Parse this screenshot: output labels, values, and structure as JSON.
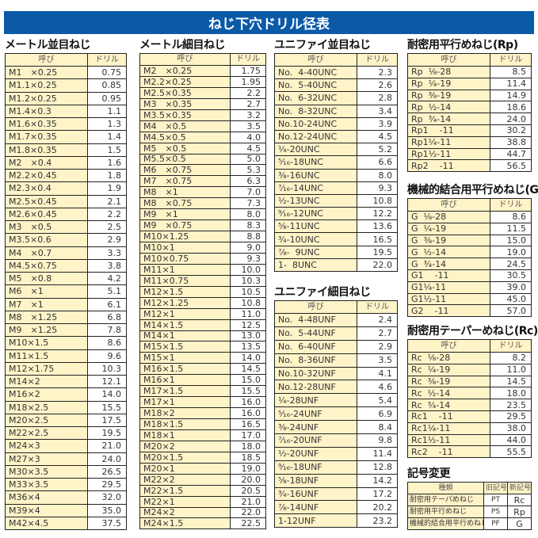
{
  "title": "ねじ下穴ドリル径表",
  "header": {
    "name": "呼び",
    "drill": "ドリル"
  },
  "sections": [
    {
      "id": "metric-coarse",
      "title": "メートル並目ねじ",
      "rows": [
        [
          "M1　×0.25",
          "0.75"
        ],
        [
          "M1.1×0.25",
          "0.85"
        ],
        [
          "M1.2×0.25",
          "0.95"
        ],
        [
          "M1.4×0.3",
          "1.1"
        ],
        [
          "M1.6×0.35",
          "1.3"
        ],
        [
          "M1.7×0.35",
          "1.4"
        ],
        [
          "M1.8×0.35",
          "1.5"
        ],
        [
          "M2　×0.4",
          "1.6"
        ],
        [
          "M2.2×0.45",
          "1.8"
        ],
        [
          "M2.3×0.4",
          "1.9"
        ],
        [
          "M2.5×0.45",
          "2.1"
        ],
        [
          "M2.6×0.45",
          "2.2"
        ],
        [
          "M3　×0.5",
          "2.5"
        ],
        [
          "M3.5×0.6",
          "2.9"
        ],
        [
          "M4　×0.7",
          "3.3"
        ],
        [
          "M4.5×0.75",
          "3.8"
        ],
        [
          "M5　×0.8",
          "4.2"
        ],
        [
          "M6　×1",
          "5.1"
        ],
        [
          "M7　×1",
          "6.1"
        ],
        [
          "M8　×1.25",
          "6.8"
        ],
        [
          "M9　×1.25",
          "7.8"
        ],
        [
          "M10×1.5",
          "8.6"
        ],
        [
          "M11×1.5",
          "9.6"
        ],
        [
          "M12×1.75",
          "10.3"
        ],
        [
          "M14×2",
          "12.1"
        ],
        [
          "M16×2",
          "14.0"
        ],
        [
          "M18×2.5",
          "15.5"
        ],
        [
          "M20×2.5",
          "17.5"
        ],
        [
          "M22×2.5",
          "19.5"
        ],
        [
          "M24×3",
          "21.0"
        ],
        [
          "M27×3",
          "24.0"
        ],
        [
          "M30×3.5",
          "26.5"
        ],
        [
          "M33×3.5",
          "29.5"
        ],
        [
          "M36×4",
          "32.0"
        ],
        [
          "M39×4",
          "35.0"
        ],
        [
          "M42×4.5",
          "37.5"
        ]
      ]
    },
    {
      "id": "metric-fine",
      "title": "メートル細目ねじ",
      "rows": [
        [
          "M2　×0.25",
          "1.75"
        ],
        [
          "M2.2×0.25",
          "1.95"
        ],
        [
          "M2.5×0.35",
          "2.2"
        ],
        [
          "M3　×0.35",
          "2.7"
        ],
        [
          "M3.5×0.35",
          "3.2"
        ],
        [
          "M4　×0.5",
          "3.5"
        ],
        [
          "M4.5×0.5",
          "4.0"
        ],
        [
          "M5　×0.5",
          "4.5"
        ],
        [
          "M5.5×0.5",
          "5.0"
        ],
        [
          "M6　×0.75",
          "5.3"
        ],
        [
          "M7　×0.75",
          "6.3"
        ],
        [
          "M8　×1",
          "7.0"
        ],
        [
          "M8　×0.75",
          "7.3"
        ],
        [
          "M9　×1",
          "8.0"
        ],
        [
          "M9　×0.75",
          "8.3"
        ],
        [
          "M10×1.25",
          "8.8"
        ],
        [
          "M10×1",
          "9.0"
        ],
        [
          "M10×0.75",
          "9.3"
        ],
        [
          "M11×1",
          "10.0"
        ],
        [
          "M11×0.75",
          "10.3"
        ],
        [
          "M12×1.5",
          "10.5"
        ],
        [
          "M12×1.25",
          "10.8"
        ],
        [
          "M12×1",
          "11.0"
        ],
        [
          "M14×1.5",
          "12.5"
        ],
        [
          "M14×1",
          "13.0"
        ],
        [
          "M15×1.5",
          "13.5"
        ],
        [
          "M15×1",
          "14.0"
        ],
        [
          "M16×1.5",
          "14.5"
        ],
        [
          "M16×1",
          "15.0"
        ],
        [
          "M17×1.5",
          "15.5"
        ],
        [
          "M17×1",
          "16.0"
        ],
        [
          "M18×2",
          "16.0"
        ],
        [
          "M18×1.5",
          "16.5"
        ],
        [
          "M18×1",
          "17.0"
        ],
        [
          "M20×2",
          "18.0"
        ],
        [
          "M20×1.5",
          "18.5"
        ],
        [
          "M20×1",
          "19.0"
        ],
        [
          "M22×2",
          "20.0"
        ],
        [
          "M22×1.5",
          "20.5"
        ],
        [
          "M22×1",
          "21.0"
        ],
        [
          "M24×2",
          "22.0"
        ],
        [
          "M24×1.5",
          "22.5"
        ]
      ]
    },
    {
      "id": "unc",
      "title": "ユニファイ並目ねじ",
      "rows": [
        [
          "No.  4-40UNC",
          "2.3"
        ],
        [
          "No.  5-40UNC",
          "2.6"
        ],
        [
          "No.  6-32UNC",
          "2.8"
        ],
        [
          "No.  8-32UNC",
          "3.4"
        ],
        [
          "No.10-24UNC",
          "3.9"
        ],
        [
          "No.12-24UNC",
          "4.5"
        ],
        [
          "¹⁄₄-20UNC",
          "5.2"
        ],
        [
          "⁵⁄₁₆-18UNC",
          "6.6"
        ],
        [
          "³⁄₈-16UNC",
          "8.0"
        ],
        [
          "⁷⁄₁₆-14UNC",
          "9.3"
        ],
        [
          "¹⁄₂-13UNC",
          "10.8"
        ],
        [
          "⁹⁄₁₆-12UNC",
          "12.2"
        ],
        [
          "⁵⁄₈-11UNC",
          "13.6"
        ],
        [
          "³⁄₄-10UNC",
          "16.5"
        ],
        [
          "⁷⁄₈-  9UNC",
          "19.5"
        ],
        [
          "1-  8UNC",
          "22.0"
        ]
      ]
    },
    {
      "id": "unf",
      "title": "ユニファイ細目ねじ",
      "rows": [
        [
          "No.  4-48UNF",
          "2.4"
        ],
        [
          "No.  5-44UNF",
          "2.7"
        ],
        [
          "No.  6-40UNF",
          "2.9"
        ],
        [
          "No.  8-36UNF",
          "3.5"
        ],
        [
          "No.10-32UNF",
          "4.1"
        ],
        [
          "No.12-28UNF",
          "4.6"
        ],
        [
          "¹⁄₄-28UNF",
          "5.4"
        ],
        [
          "⁵⁄₁₆-24UNF",
          "6.9"
        ],
        [
          "³⁄₈-24UNF",
          "8.4"
        ],
        [
          "⁷⁄₁₆-20UNF",
          "9.8"
        ],
        [
          "¹⁄₂-20UNF",
          "11.4"
        ],
        [
          "⁹⁄₁₆-18UNF",
          "12.8"
        ],
        [
          "⁵⁄₈-18UNF",
          "14.2"
        ],
        [
          "³⁄₄-16UNF",
          "17.2"
        ],
        [
          "⁷⁄₈-14UNF",
          "20.2"
        ],
        [
          "1-12UNF",
          "23.2"
        ]
      ]
    },
    {
      "id": "rp",
      "title": "耐密用平行めねじ(Rp)",
      "rows": [
        [
          "Rp  ¹⁄₈-28",
          "8.5"
        ],
        [
          "Rp  ¹⁄₄-19",
          "11.4"
        ],
        [
          "Rp  ³⁄₈-19",
          "14.9"
        ],
        [
          "Rp  ¹⁄₂-14",
          "18.6"
        ],
        [
          "Rp  ³⁄₄-14",
          "24.0"
        ],
        [
          "Rp1    -11",
          "30.2"
        ],
        [
          "Rp1¹⁄₄-11",
          "38.8"
        ],
        [
          "Rp1¹⁄₂-11",
          "44.7"
        ],
        [
          "Rp2    -11",
          "56.5"
        ]
      ]
    },
    {
      "id": "g",
      "title": "機械的結合用平行めねじ(G)",
      "rows": [
        [
          "G  ¹⁄₈-28",
          "8.6"
        ],
        [
          "G  ¹⁄₄-19",
          "11.5"
        ],
        [
          "G  ³⁄₈-19",
          "15.0"
        ],
        [
          "G  ¹⁄₂-14",
          "19.0"
        ],
        [
          "G  ³⁄₄-14",
          "24.5"
        ],
        [
          "G1    -11",
          "30.5"
        ],
        [
          "G1¹⁄₄-11",
          "39.0"
        ],
        [
          "G1¹⁄₂-11",
          "45.0"
        ],
        [
          "G2    -11",
          "57.0"
        ]
      ]
    },
    {
      "id": "rc",
      "title": "耐密用テーパーめねじ(Rc)",
      "rows": [
        [
          "Rc  ¹⁄₈-28",
          "8.2"
        ],
        [
          "Rc  ¹⁄₄-19",
          "11.0"
        ],
        [
          "Rc  ³⁄₈-19",
          "14.5"
        ],
        [
          "Rc  ¹⁄₂-14",
          "18.0"
        ],
        [
          "Rc  ³⁄₄-14",
          "23.5"
        ],
        [
          "Rc1    -11",
          "29.5"
        ],
        [
          "Rc1¹⁄₄-11",
          "38.0"
        ],
        [
          "Rc1¹⁄₂-11",
          "44.0"
        ],
        [
          "Rc2    -11",
          "55.5"
        ]
      ]
    }
  ],
  "symbols": {
    "title": "記号変更",
    "header": [
      "種類",
      "旧記号",
      "新記号"
    ],
    "rows": [
      [
        "耐密用テーパめねじ",
        "PT",
        "Rc"
      ],
      [
        "耐密用平行めねじ",
        "PS",
        "Rp"
      ],
      [
        "機械的結合用平行めねじ",
        "PF",
        "G"
      ]
    ]
  }
}
